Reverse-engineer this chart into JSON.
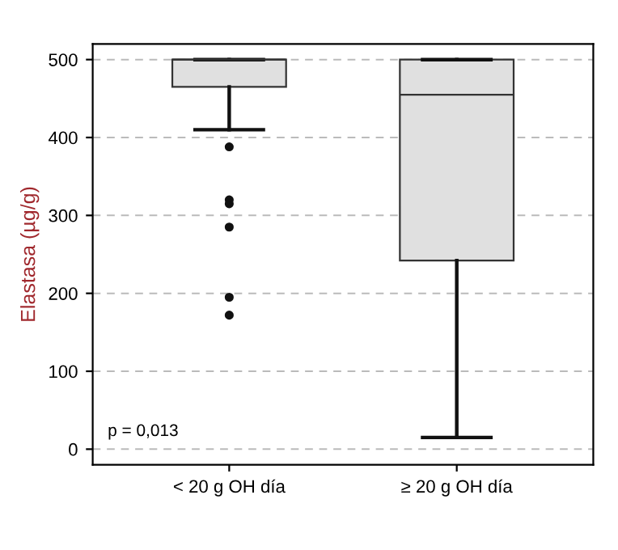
{
  "chart_data": {
    "type": "box",
    "ylabel": "Elastasa (µg/g)",
    "categories": [
      "< 20 g OH día",
      "≥ 20 g OH día"
    ],
    "boxes": [
      {
        "low": 410,
        "q1": 465,
        "median": 500,
        "q3": 500,
        "high": 500,
        "outliers": [
          388,
          320,
          315,
          285,
          195,
          172
        ]
      },
      {
        "low": 15,
        "q1": 242,
        "median": 455,
        "q3": 500,
        "high": 500
      }
    ],
    "color": "#e0e0e0",
    "ylim": [
      -20,
      520
    ],
    "yticks": [
      0,
      100,
      200,
      300,
      400,
      500
    ],
    "grid": "y",
    "annotations": [
      {
        "text": "p = 0,013"
      }
    ]
  }
}
